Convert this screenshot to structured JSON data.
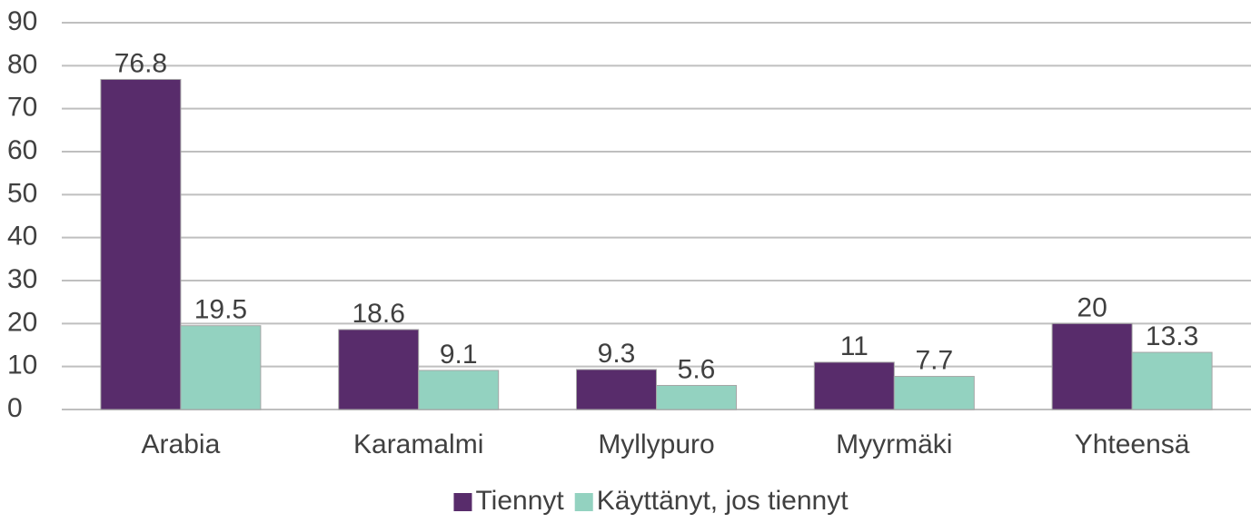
{
  "chart_data": {
    "type": "bar",
    "categories": [
      "Arabia",
      "Karamalmi",
      "Myllypuro",
      "Myyrmäki",
      "Yhteensä"
    ],
    "series": [
      {
        "name": "Tiennyt",
        "color": "#582c6b",
        "values": [
          76.8,
          18.6,
          9.3,
          11,
          20
        ]
      },
      {
        "name": "Käyttänyt, jos tiennyt",
        "color": "#93d2c0",
        "values": [
          19.5,
          9.1,
          5.6,
          7.7,
          13.3
        ]
      }
    ],
    "ylim": [
      0,
      90
    ],
    "yticks": [
      0,
      10,
      20,
      30,
      40,
      50,
      60,
      70,
      80,
      90
    ],
    "grid": true,
    "legend": "bottom"
  }
}
